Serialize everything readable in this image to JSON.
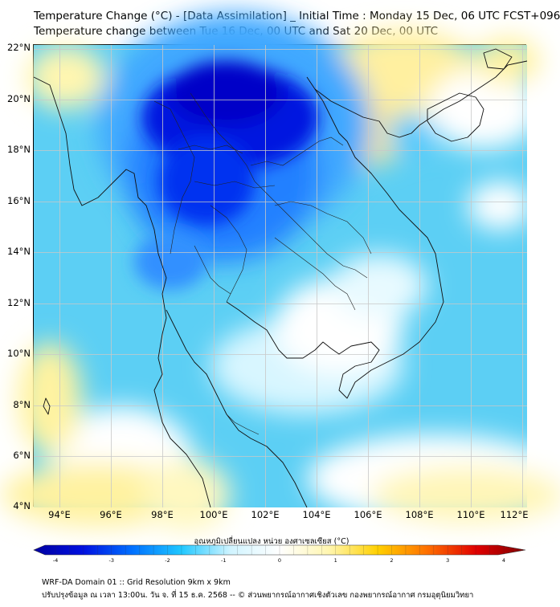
{
  "title_line1": "Temperature Change (°C) - [Data Assimilation] _ Initial Time : Monday 15 Dec, 06 UTC FCST+096",
  "title_line2": "Temperature change between Tue 16 Dec, 00 UTC and Sat 20 Dec, 00 UTC",
  "lat_labels": [
    "22°N",
    "20°N",
    "18°N",
    "16°N",
    "14°N",
    "12°N",
    "10°N",
    "8°N",
    "6°N",
    "4°N"
  ],
  "lon_labels": [
    "94°E",
    "96°E",
    "98°E",
    "100°E",
    "102°E",
    "104°E",
    "106°E",
    "108°E",
    "110°E",
    "112°E"
  ],
  "colorbar": {
    "title": "อุณหภูมิเปลี่ยนแปลง หน่วย องศาเซลเซียส (°C)",
    "ticks": [
      "-4",
      "-3",
      "-2",
      "-1",
      "0",
      "1",
      "2",
      "3",
      "4"
    ],
    "range": [
      -4,
      4
    ],
    "colors": [
      "#0000a0",
      "#0010e0",
      "#0070ff",
      "#20c8ff",
      "#d0f4ff",
      "#ffffff",
      "#fff6b0",
      "#ffd000",
      "#ff7000",
      "#e00000",
      "#800000"
    ]
  },
  "footer_line1": "WRF-DA Domain 01 :: Grid Resolution 9km x 9km",
  "footer_line2": "ปรับปรุงข้อมูล ณ เวลา 13:00น. วัน จ. ที่ 15 ธ.ค. 2568 -- © ส่วนพยากรณ์อากาศเชิงตัวเลข กองพยากรณ์อากาศ กรมอุตุนิยมวิทยา"
}
